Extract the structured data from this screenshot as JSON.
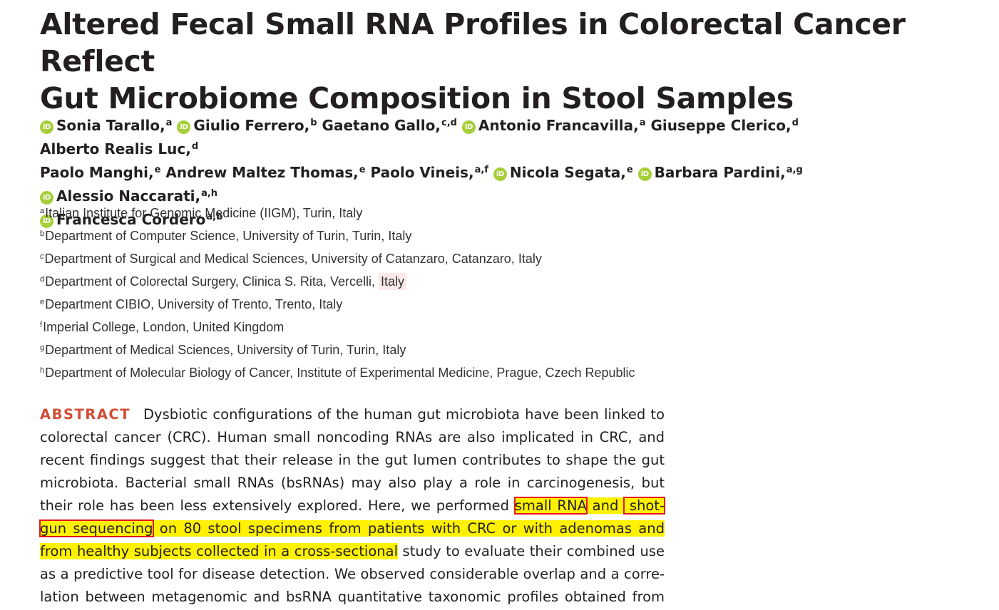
{
  "title": {
    "line1": "Altered Fecal Small RNA Profiles in Colorectal Cancer Reflect",
    "line2": "Gut Microbiome Composition in Stool Samples"
  },
  "authors": [
    {
      "name": "Sonia Tarallo,",
      "sup": "a",
      "orcid": true
    },
    {
      "name": "Giulio Ferrero,",
      "sup": "b",
      "orcid": true
    },
    {
      "name": "Gaetano Gallo,",
      "sup": "c,d",
      "orcid": false
    },
    {
      "name": "Antonio Francavilla,",
      "sup": "a",
      "orcid": true
    },
    {
      "name": "Giuseppe Clerico,",
      "sup": "d",
      "orcid": false
    },
    {
      "name": "Alberto Realis Luc,",
      "sup": "d",
      "orcid": false
    },
    {
      "name": "Paolo Manghi,",
      "sup": "e",
      "orcid": false
    },
    {
      "name": "Andrew Maltez Thomas,",
      "sup": "e",
      "orcid": false
    },
    {
      "name": "Paolo Vineis,",
      "sup": "a,f",
      "orcid": false
    },
    {
      "name": "Nicola Segata,",
      "sup": "e",
      "orcid": true
    },
    {
      "name": "Barbara Pardini,",
      "sup": "a,g",
      "orcid": true
    },
    {
      "name": "Alessio Naccarati,",
      "sup": "a,h",
      "orcid": true
    },
    {
      "name": "Francesca Cordero",
      "sup": "a,b",
      "orcid": true
    }
  ],
  "orcid_icon_text": "iD",
  "affiliations": [
    {
      "sup": "a",
      "text": "Italian Institute for Genomic Medicine (IIGM), Turin, Italy"
    },
    {
      "sup": "b",
      "text": "Department of Computer Science, University of Turin, Turin, Italy"
    },
    {
      "sup": "c",
      "text": "Department of Surgical and Medical Sciences, University of Catanzaro, Catanzaro, Italy"
    },
    {
      "sup": "d",
      "text": "Department of Colorectal Surgery, Clinica S. Rita, Vercelli, ",
      "highlight": "Italy"
    },
    {
      "sup": "e",
      "text": "Department CIBIO, University of Trento, Trento, Italy"
    },
    {
      "sup": "f",
      "text": "Imperial College, London, United Kingdom"
    },
    {
      "sup": "g",
      "text": "Department of Medical Sciences, University of Turin, Turin, Italy"
    },
    {
      "sup": "h",
      "text": "Department of Molecular Biology of Cancer, Institute of Experimental Medicine, Prague, Czech Republic"
    }
  ],
  "abstract": {
    "heading": "ABSTRACT",
    "lines": [
      [
        {
          "t": "Dysbiotic configurations of the human gut microbiota have been linked to"
        }
      ],
      [
        {
          "t": "colorectal cancer (CRC). Human small noncoding RNAs are also implicated in CRC, and"
        }
      ],
      [
        {
          "t": "recent findings suggest that their release in the gut lumen contributes to shape the gut"
        }
      ],
      [
        {
          "t": "microbiota. Bacterial small RNAs (bsRNAs) may also play a role in carcinogenesis, but"
        }
      ],
      [
        {
          "t": "their role has been less extensively explored. Here, we performed "
        },
        {
          "t": "small RNA",
          "hl": true,
          "box": true
        },
        {
          "t": " and ",
          "hl": true
        },
        {
          "t": " shot-",
          "hl": true,
          "box": true
        }
      ],
      [
        {
          "t": "gun sequencing",
          "hl": true,
          "box": true
        },
        {
          "t": " on 80 stool specimens from patients with CRC or with adenomas and",
          "hl": true
        }
      ],
      [
        {
          "t": "from healthy subjects collected in a cross-sectional",
          "hl": true
        },
        {
          "t": " study to evaluate their combined use"
        }
      ],
      [
        {
          "t": "as a predictive tool for disease detection. We observed considerable overlap and a corre-"
        }
      ],
      [
        {
          "t": "lation between metagenomic and bsRNA quantitative taxonomic profiles obtained from"
        }
      ]
    ]
  }
}
